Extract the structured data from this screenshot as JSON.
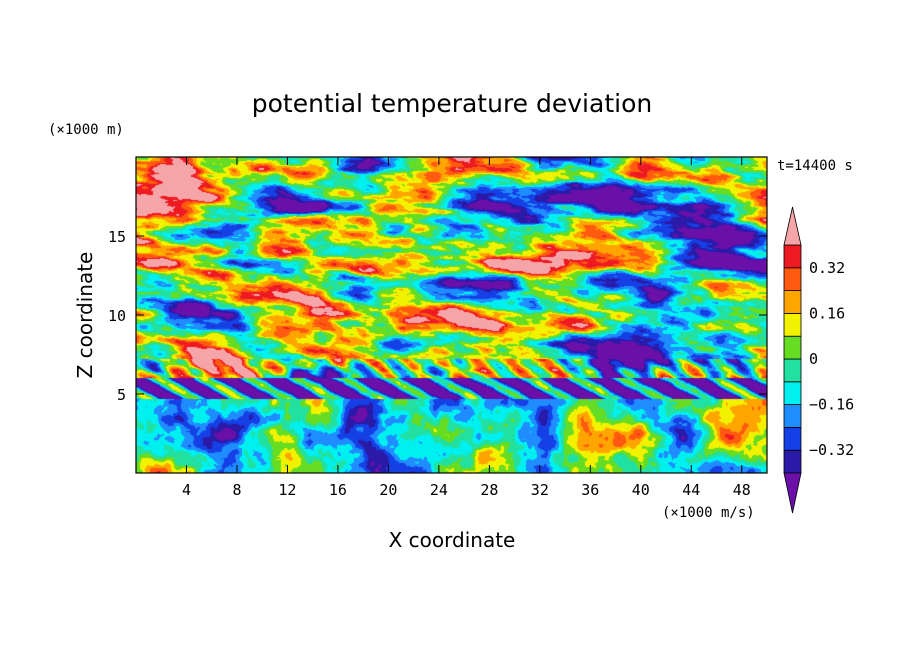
{
  "chart_data": {
    "type": "heatmap",
    "title": "potential temperature deviation",
    "xlabel": "X coordinate",
    "ylabel": "Z coordinate",
    "x_unit": "(×1000 m/s)",
    "y_unit": "(×1000 m)",
    "time_label": "t=14400 s",
    "xlim": [
      0,
      50
    ],
    "ylim": [
      0,
      20
    ],
    "x_ticks": [
      4,
      8,
      12,
      16,
      20,
      24,
      28,
      32,
      36,
      40,
      44,
      48
    ],
    "y_ticks": [
      5,
      10,
      15
    ],
    "x_tick_labels": [
      "4",
      "8",
      "12",
      "16",
      "20",
      "24",
      "28",
      "32",
      "36",
      "40",
      "44",
      "48"
    ],
    "y_tick_labels": [
      "5",
      "10",
      "15"
    ],
    "colorbar": {
      "levels": [
        -0.4,
        -0.32,
        -0.24,
        -0.16,
        -0.08,
        0,
        0.08,
        0.16,
        0.24,
        0.32,
        0.4
      ],
      "tick_values": [
        0.32,
        0.16,
        0,
        -0.16,
        -0.32
      ],
      "tick_labels": [
        "0.32",
        "0.16",
        "0",
        "−0.16",
        "−0.32"
      ],
      "colors": [
        "#6a0fa8",
        "#2a1aa8",
        "#1540e6",
        "#1f8cff",
        "#00f0f0",
        "#22e0a0",
        "#66dd22",
        "#f2f200",
        "#ffa500",
        "#ff5a10",
        "#ee1a22",
        "#f5a5a8"
      ],
      "extend": "both"
    }
  }
}
